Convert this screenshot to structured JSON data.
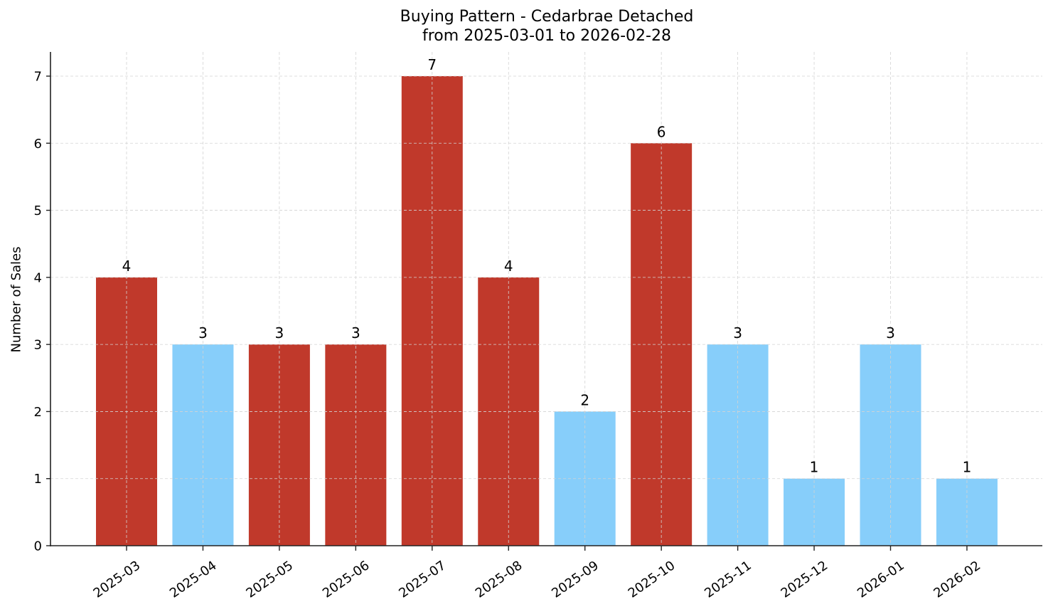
{
  "title_line1": "Buying Pattern - Cedarbrae Detached",
  "title_line2": "from 2025-03-01 to 2026-02-28",
  "colors": {
    "high": "#c0392b",
    "low": "#87cefa",
    "axis": "#222222",
    "grid": "#d3d3d3"
  },
  "chart_data": {
    "type": "bar",
    "title": "Buying Pattern - Cedarbrae Detached\nfrom 2025-03-01 to 2026-02-28",
    "xlabel": "",
    "ylabel": "Number of Sales",
    "categories": [
      "2025-03",
      "2025-04",
      "2025-05",
      "2025-06",
      "2025-07",
      "2025-08",
      "2025-09",
      "2025-10",
      "2025-11",
      "2025-12",
      "2026-01",
      "2026-02"
    ],
    "values": [
      4,
      3,
      3,
      3,
      7,
      4,
      2,
      6,
      3,
      1,
      3,
      1
    ],
    "bar_colors": [
      "#c0392b",
      "#87cefa",
      "#c0392b",
      "#c0392b",
      "#c0392b",
      "#c0392b",
      "#87cefa",
      "#c0392b",
      "#87cefa",
      "#87cefa",
      "#87cefa",
      "#87cefa"
    ],
    "ylim": [
      0,
      7.35
    ],
    "yticks": [
      0,
      1,
      2,
      3,
      4,
      5,
      6,
      7
    ],
    "grid": true,
    "legend": null,
    "data_labels": true
  }
}
